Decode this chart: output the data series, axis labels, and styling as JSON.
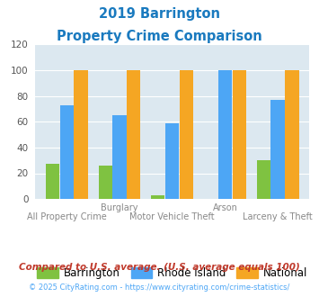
{
  "title_line1": "2019 Barrington",
  "title_line2": "Property Crime Comparison",
  "title_color": "#1a7abf",
  "categories": [
    "All Property Crime",
    "Burglary",
    "Motor Vehicle Theft",
    "Arson",
    "Larceny & Theft"
  ],
  "barrington": [
    27,
    26,
    3,
    0,
    30
  ],
  "rhode_island": [
    73,
    65,
    59,
    100,
    77
  ],
  "national": [
    100,
    100,
    100,
    100,
    100
  ],
  "barrington_color": "#7fc241",
  "rhode_island_color": "#4da6f5",
  "national_color": "#f5a623",
  "ylim": [
    0,
    120
  ],
  "yticks": [
    0,
    20,
    40,
    60,
    80,
    100,
    120
  ],
  "bg_color": "#dce8f0",
  "legend_labels": [
    "Barrington",
    "Rhode Island",
    "National"
  ],
  "footnote1": "Compared to U.S. average. (U.S. average equals 100)",
  "footnote2": "© 2025 CityRating.com - https://www.cityrating.com/crime-statistics/",
  "footnote1_color": "#c0392b",
  "footnote2_color": "#4da6f5"
}
